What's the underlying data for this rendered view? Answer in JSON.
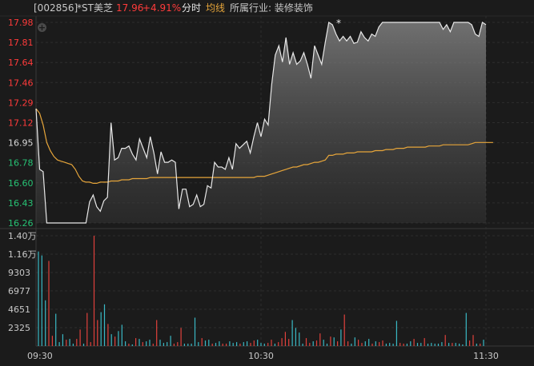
{
  "header": {
    "code": "[002856]",
    "name": "*ST美芝",
    "price": "17.96",
    "change": "+4.91%",
    "mode": "分时",
    "avg_label": "均线",
    "industry": "所属行业: 装修装饰"
  },
  "toolbar": {
    "plus_symbol": "+",
    "peak_marker": "*"
  },
  "colors": {
    "up": "#ff3b3b",
    "down": "#27c274",
    "price_line": "#e8e8e8",
    "avg_line": "#e6a53a",
    "volume_up": "#e0413c",
    "volume_down": "#39b8c4",
    "grid": "#333333",
    "background": "#1b1b1b"
  },
  "chart_data": [
    {
      "type": "line",
      "ylim": [
        16.26,
        17.98
      ],
      "y_ticks": [
        "17.98",
        "17.81",
        "17.64",
        "17.46",
        "17.29",
        "17.12",
        "16.95",
        "16.78",
        "16.60",
        "16.43",
        "16.26"
      ],
      "x_ticks": [
        "09:30",
        "10:30",
        "11:30"
      ],
      "reference_price": 16.95,
      "series": [
        {
          "values": [
            17.24,
            16.72,
            16.7,
            16.26,
            16.26,
            16.26,
            16.26,
            16.26,
            16.26,
            16.26,
            16.26,
            16.26,
            16.26,
            16.26,
            16.26,
            16.44,
            16.5,
            16.4,
            16.36,
            16.45,
            16.48,
            17.12,
            16.8,
            16.82,
            16.9,
            16.9,
            16.92,
            16.85,
            16.8,
            16.98,
            16.9,
            16.82,
            17.0,
            16.86,
            16.68,
            16.87,
            16.78,
            16.78,
            16.8,
            16.78,
            16.38,
            16.55,
            16.55,
            16.4,
            16.42,
            16.5,
            16.4,
            16.42,
            16.58,
            16.56,
            16.78,
            16.74,
            16.74,
            16.72,
            16.82,
            16.72,
            16.94,
            16.9,
            16.93,
            16.96,
            16.86,
            17.0,
            17.12,
            17.0,
            17.15,
            17.1,
            17.45,
            17.7,
            17.78,
            17.64,
            17.85,
            17.62,
            17.72,
            17.62,
            17.65,
            17.72,
            17.62,
            17.5,
            17.78,
            17.7,
            17.62,
            17.81,
            17.98,
            17.96,
            17.88,
            17.82,
            17.86,
            17.82,
            17.86,
            17.8,
            17.81,
            17.9,
            17.85,
            17.82,
            17.88,
            17.86,
            17.94,
            17.98,
            17.98,
            17.98,
            17.98,
            17.98,
            17.98,
            17.98,
            17.98,
            17.98,
            17.98,
            17.98,
            17.98,
            17.98,
            17.98,
            17.98,
            17.98,
            17.98,
            17.92,
            17.96,
            17.9,
            17.98,
            17.98,
            17.98,
            17.98,
            17.98,
            17.96,
            17.88,
            17.86,
            17.98,
            17.96
          ],
          "avg_values": [
            17.24,
            17.2,
            17.1,
            16.95,
            16.88,
            16.83,
            16.8,
            16.79,
            16.78,
            16.77,
            16.76,
            16.72,
            16.66,
            16.62,
            16.61,
            16.61,
            16.6,
            16.6,
            16.61,
            16.61,
            16.61,
            16.62,
            16.62,
            16.62,
            16.63,
            16.63,
            16.63,
            16.64,
            16.64,
            16.64,
            16.64,
            16.64,
            16.65,
            16.65,
            16.65,
            16.65,
            16.65,
            16.65,
            16.65,
            16.65,
            16.65,
            16.65,
            16.65,
            16.65,
            16.65,
            16.65,
            16.65,
            16.65,
            16.65,
            16.65,
            16.65,
            16.65,
            16.65,
            16.65,
            16.65,
            16.65,
            16.65,
            16.65,
            16.65,
            16.65,
            16.65,
            16.65,
            16.66,
            16.66,
            16.66,
            16.67,
            16.68,
            16.69,
            16.7,
            16.71,
            16.72,
            16.73,
            16.74,
            16.74,
            16.75,
            16.76,
            16.76,
            16.77,
            16.78,
            16.78,
            16.79,
            16.8,
            16.84,
            16.84,
            16.85,
            16.85,
            16.85,
            16.86,
            16.86,
            16.86,
            16.87,
            16.87,
            16.87,
            16.87,
            16.87,
            16.88,
            16.88,
            16.88,
            16.89,
            16.89,
            16.89,
            16.9,
            16.9,
            16.9,
            16.91,
            16.91,
            16.91,
            16.91,
            16.91,
            16.91,
            16.92,
            16.92,
            16.92,
            16.92,
            16.93,
            16.93,
            16.93,
            16.93,
            16.93,
            16.93,
            16.93,
            16.93,
            16.94,
            16.95,
            16.95,
            16.95,
            16.95,
            16.95,
            16.95
          ]
        }
      ]
    },
    {
      "type": "bar",
      "ylim": [
        0,
        14000
      ],
      "y_ticks": [
        "1.40万",
        "1.16万",
        "9303",
        "6977",
        "4651",
        "2325"
      ],
      "series": [
        {
          "values": [
            12000,
            11500,
            5800,
            10800,
            1300,
            4100,
            500,
            1500,
            800,
            900,
            300,
            900,
            2100,
            300,
            4200,
            500,
            14000,
            3300,
            4300,
            5300,
            2800,
            1500,
            1200,
            1900,
            2700,
            600,
            300,
            200,
            1000,
            900,
            500,
            600,
            800,
            300,
            3300,
            800,
            400,
            500,
            1300,
            300,
            500,
            2300,
            300,
            300,
            300,
            3600,
            500,
            1000,
            700,
            800,
            300,
            400,
            600,
            300,
            300,
            600,
            400,
            500,
            300,
            500,
            600,
            400,
            700,
            800,
            400,
            300,
            400,
            800,
            300,
            500,
            1000,
            1800,
            900,
            3300,
            2300,
            1700,
            300,
            1000,
            400,
            600,
            700,
            1600,
            800,
            300,
            1200,
            1100,
            600,
            2100,
            4000,
            600,
            300,
            1100,
            800,
            400,
            600,
            900,
            300,
            600,
            500,
            700,
            300,
            400,
            300,
            3200,
            400,
            300,
            300,
            600,
            900,
            400,
            400,
            1000,
            300,
            400,
            300,
            300,
            500,
            1400,
            400,
            400,
            400,
            300,
            200,
            4200,
            700,
            1400,
            300,
            300,
            800
          ],
          "colors": [
            "d",
            "d",
            "d",
            "u",
            "u",
            "d",
            "d",
            "d",
            "u",
            "d",
            "d",
            "u",
            "u",
            "d",
            "u",
            "u",
            "u",
            "u",
            "d",
            "d",
            "u",
            "d",
            "u",
            "d",
            "d",
            "d",
            "u",
            "d",
            "u",
            "d",
            "u",
            "d",
            "d",
            "u",
            "u",
            "d",
            "d",
            "d",
            "d",
            "u",
            "u",
            "u",
            "d",
            "d",
            "d",
            "d",
            "d",
            "u",
            "d",
            "d",
            "u",
            "d",
            "d",
            "u",
            "u",
            "d",
            "d",
            "d",
            "u",
            "d",
            "d",
            "u",
            "u",
            "d",
            "d",
            "d",
            "u",
            "u",
            "d",
            "u",
            "u",
            "u",
            "u",
            "d",
            "d",
            "d",
            "d",
            "u",
            "u",
            "d",
            "u",
            "u",
            "d",
            "d",
            "u",
            "d",
            "u",
            "d",
            "u",
            "u",
            "d",
            "d",
            "u",
            "u",
            "d",
            "d",
            "u",
            "d",
            "u",
            "u",
            "d",
            "d",
            "d",
            "d",
            "u",
            "u",
            "d",
            "d",
            "u",
            "d",
            "d",
            "u",
            "d",
            "d",
            "d",
            "d",
            "d",
            "u",
            "d",
            "u",
            "d",
            "d",
            "d",
            "d",
            "u",
            "u",
            "d",
            "u",
            "d",
            "u"
          ]
        }
      ]
    }
  ]
}
